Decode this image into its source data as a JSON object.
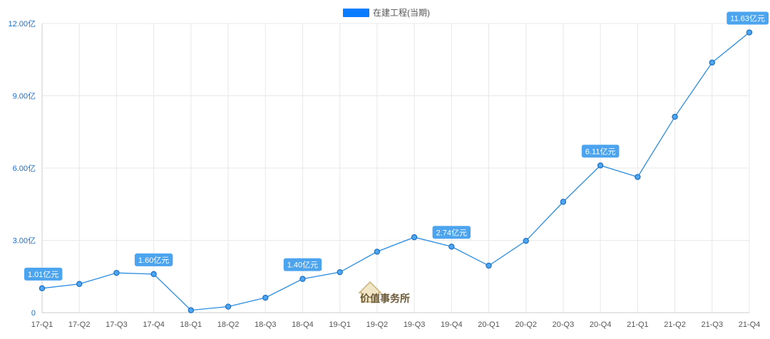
{
  "chart_data": {
    "type": "line",
    "title": "",
    "xlabel": "",
    "ylabel": "",
    "legend": {
      "position": "top-center",
      "entries": [
        "在建工程(当期)"
      ]
    },
    "grid": true,
    "categories": [
      "17-Q1",
      "17-Q2",
      "17-Q3",
      "17-Q4",
      "18-Q1",
      "18-Q2",
      "18-Q3",
      "18-Q4",
      "19-Q1",
      "19-Q2",
      "19-Q3",
      "19-Q4",
      "20-Q1",
      "20-Q2",
      "20-Q3",
      "20-Q4",
      "21-Q1",
      "21-Q2",
      "21-Q3",
      "21-Q4"
    ],
    "ylim": [
      0,
      12
    ],
    "yticks": [
      0,
      3,
      6,
      9,
      12
    ],
    "ytick_labels": [
      "0",
      "3.00亿",
      "6.00亿",
      "9.00亿",
      "12.00亿"
    ],
    "series": [
      {
        "name": "在建工程(当期)",
        "color": "#2a8ce0",
        "values": [
          1.01,
          1.19,
          1.65,
          1.6,
          0.1,
          0.25,
          0.62,
          1.4,
          1.68,
          2.53,
          3.13,
          2.74,
          1.95,
          2.98,
          4.6,
          6.11,
          5.63,
          8.13,
          10.38,
          11.63
        ]
      }
    ],
    "annotations": [
      {
        "index": 0,
        "text": "1.01亿元"
      },
      {
        "index": 3,
        "text": "1.60亿元"
      },
      {
        "index": 7,
        "text": "1.40亿元"
      },
      {
        "index": 11,
        "text": "2.74亿元"
      },
      {
        "index": 15,
        "text": "6.11亿元"
      },
      {
        "index": 19,
        "text": "11.63亿元"
      }
    ]
  },
  "watermark": {
    "text": "价值事务所"
  }
}
